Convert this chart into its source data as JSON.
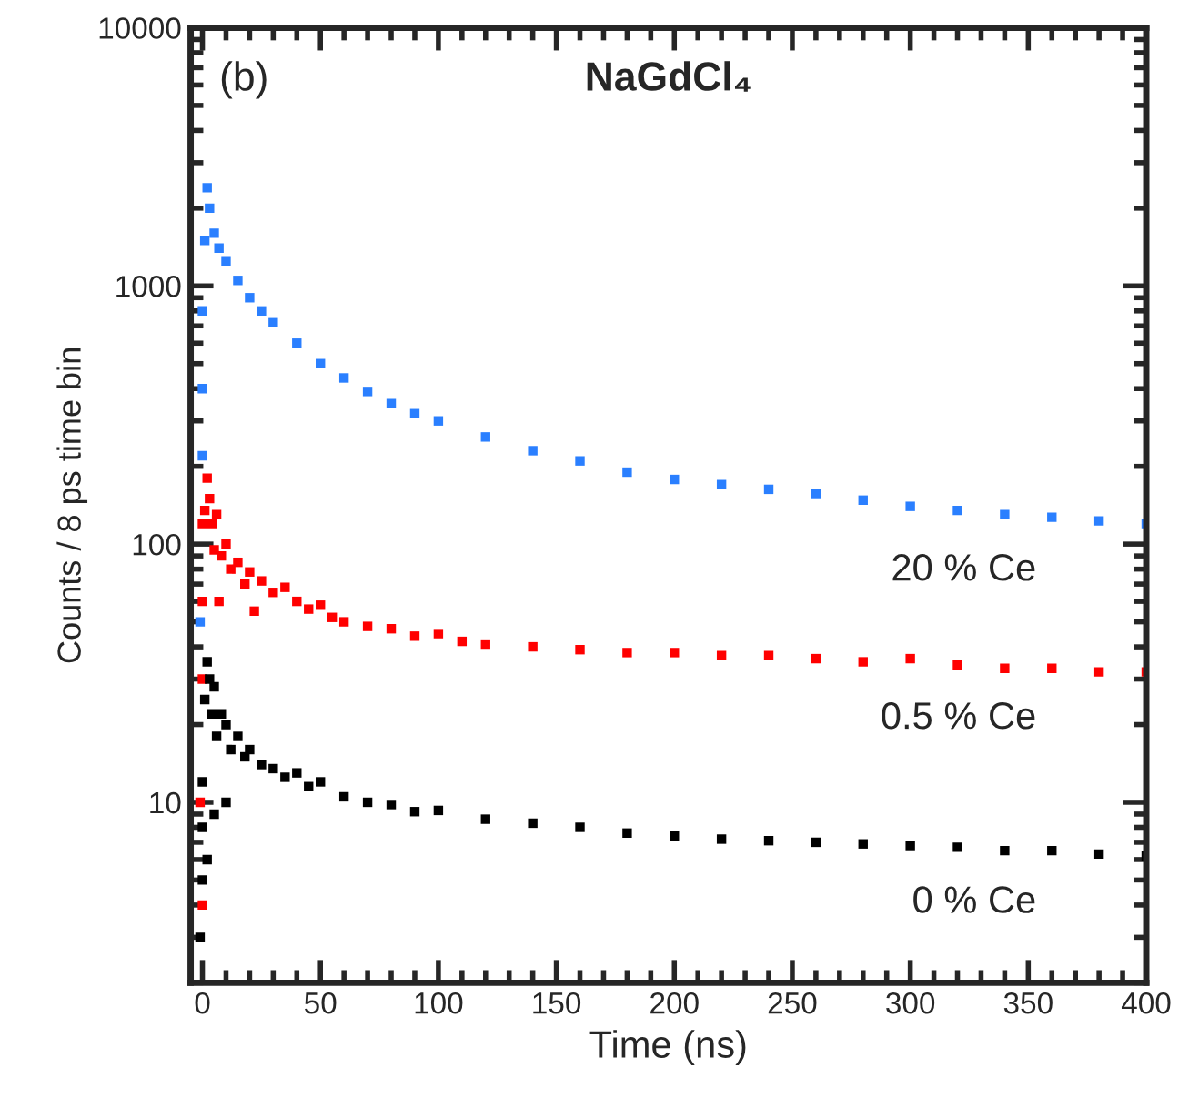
{
  "chart_data": {
    "type": "scatter",
    "title": "NaGdCl₄",
    "annotations": [
      "(b)"
    ],
    "xlabel": "Time (ns)",
    "ylabel": "Counts / 8 ps time bin",
    "log": "y",
    "xlim": [
      -5,
      400
    ],
    "xticks": [
      0,
      50,
      100,
      150,
      200,
      250,
      300,
      350,
      400
    ],
    "ylim": [
      2,
      10000
    ],
    "yticks": [
      10,
      100,
      1000,
      10000
    ],
    "marker": "square",
    "grid": false,
    "legend": false,
    "series": [
      {
        "name": "20 % Ce",
        "color": "#2a7fff",
        "x": [
          -1,
          0,
          0,
          0,
          1,
          2,
          3,
          5,
          7,
          10,
          15,
          20,
          25,
          30,
          40,
          50,
          60,
          70,
          80,
          90,
          100,
          120,
          140,
          160,
          180,
          200,
          220,
          240,
          260,
          280,
          300,
          320,
          340,
          360,
          380,
          400
        ],
        "values": [
          50,
          220,
          400,
          800,
          1500,
          2400,
          2000,
          1600,
          1400,
          1250,
          1050,
          900,
          800,
          720,
          600,
          500,
          440,
          390,
          350,
          320,
          300,
          260,
          230,
          210,
          190,
          178,
          170,
          163,
          157,
          148,
          140,
          135,
          130,
          127,
          123,
          120
        ]
      },
      {
        "name": "0.5 % Ce",
        "color": "#ff0000",
        "x": [
          -1,
          0,
          0,
          0,
          0,
          1,
          2,
          3,
          4,
          5,
          6,
          7,
          8,
          10,
          12,
          15,
          18,
          20,
          22,
          25,
          30,
          35,
          40,
          45,
          50,
          55,
          60,
          70,
          80,
          90,
          100,
          110,
          120,
          140,
          160,
          180,
          200,
          220,
          240,
          260,
          280,
          300,
          320,
          340,
          360,
          380,
          400
        ],
        "values": [
          10,
          4,
          30,
          60,
          120,
          135,
          180,
          150,
          120,
          95,
          130,
          60,
          90,
          100,
          80,
          85,
          70,
          78,
          55,
          72,
          65,
          68,
          60,
          56,
          58,
          52,
          50,
          48,
          47,
          44,
          45,
          42,
          41,
          40,
          39,
          38,
          38,
          37,
          37,
          36,
          35,
          36,
          34,
          33,
          33,
          32,
          32
        ]
      },
      {
        "name": "0 % Ce",
        "color": "#000000",
        "x": [
          -1,
          0,
          0,
          0,
          1,
          2,
          2,
          3,
          4,
          5,
          5,
          6,
          8,
          10,
          10,
          12,
          15,
          18,
          20,
          25,
          30,
          35,
          40,
          45,
          50,
          60,
          70,
          80,
          90,
          100,
          120,
          140,
          160,
          180,
          200,
          220,
          240,
          260,
          280,
          300,
          320,
          340,
          360,
          380,
          400
        ],
        "values": [
          3,
          5,
          8,
          12,
          25,
          35,
          6,
          30,
          22,
          28,
          9,
          18,
          22,
          20,
          10,
          16,
          18,
          15,
          16,
          14,
          13.5,
          12.5,
          13,
          11.5,
          12,
          10.5,
          10,
          9.8,
          9.2,
          9.3,
          8.6,
          8.3,
          8,
          7.6,
          7.4,
          7.2,
          7.1,
          7,
          6.9,
          6.8,
          6.7,
          6.5,
          6.5,
          6.3,
          6.2
        ]
      }
    ]
  }
}
